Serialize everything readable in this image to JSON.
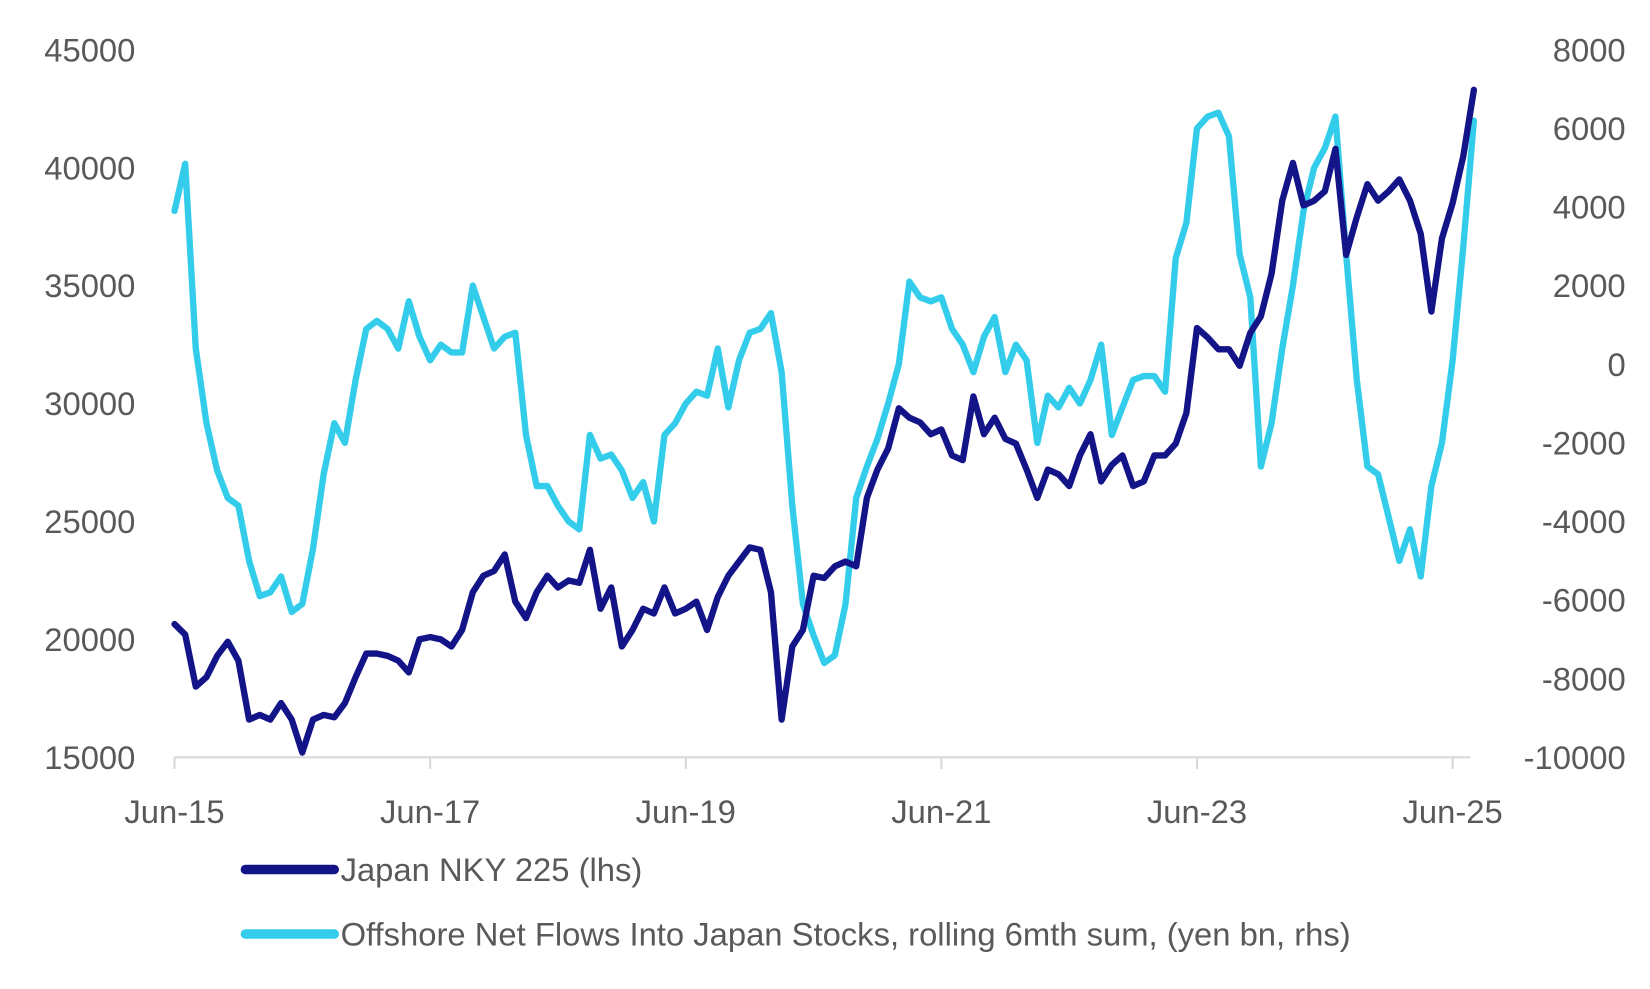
{
  "chart_data": {
    "type": "line",
    "title": "",
    "xlabel": "",
    "ylabel_left": "",
    "ylabel_right": "",
    "x_tick_labels": [
      "Jun-15",
      "Jun-17",
      "Jun-19",
      "Jun-21",
      "Jun-23",
      "Jun-25"
    ],
    "y_left_ticks": [
      "45000",
      "40000",
      "35000",
      "30000",
      "25000",
      "20000",
      "15000"
    ],
    "y_right_ticks": [
      "8000",
      "6000",
      "4000",
      "2000",
      "0",
      "-2000",
      "-4000",
      "-6000",
      "-8000",
      "-10000"
    ],
    "ylim_left": [
      15000,
      45000
    ],
    "ylim_right": [
      -10000,
      8000
    ],
    "grid": false,
    "legend_position": "bottom",
    "x": [
      "2015-06",
      "2015-07",
      "2015-08",
      "2015-09",
      "2015-10",
      "2015-11",
      "2015-12",
      "2016-01",
      "2016-02",
      "2016-03",
      "2016-04",
      "2016-05",
      "2016-06",
      "2016-07",
      "2016-08",
      "2016-09",
      "2016-10",
      "2016-11",
      "2016-12",
      "2017-01",
      "2017-02",
      "2017-03",
      "2017-04",
      "2017-05",
      "2017-06",
      "2017-07",
      "2017-08",
      "2017-09",
      "2017-10",
      "2017-11",
      "2017-12",
      "2018-01",
      "2018-02",
      "2018-03",
      "2018-04",
      "2018-05",
      "2018-06",
      "2018-07",
      "2018-08",
      "2018-09",
      "2018-10",
      "2018-11",
      "2018-12",
      "2019-01",
      "2019-02",
      "2019-03",
      "2019-04",
      "2019-05",
      "2019-06",
      "2019-07",
      "2019-08",
      "2019-09",
      "2019-10",
      "2019-11",
      "2019-12",
      "2020-01",
      "2020-02",
      "2020-03",
      "2020-04",
      "2020-05",
      "2020-06",
      "2020-07",
      "2020-08",
      "2020-09",
      "2020-10",
      "2020-11",
      "2020-12",
      "2021-01",
      "2021-02",
      "2021-03",
      "2021-04",
      "2021-05",
      "2021-06",
      "2021-07",
      "2021-08",
      "2021-09",
      "2021-10",
      "2021-11",
      "2021-12",
      "2022-01",
      "2022-02",
      "2022-03",
      "2022-04",
      "2022-05",
      "2022-06",
      "2022-07",
      "2022-08",
      "2022-09",
      "2022-10",
      "2022-11",
      "2022-12",
      "2023-01",
      "2023-02",
      "2023-03",
      "2023-04",
      "2023-05",
      "2023-06",
      "2023-07",
      "2023-08",
      "2023-09",
      "2023-10",
      "2023-11",
      "2023-12",
      "2024-01",
      "2024-02",
      "2024-03",
      "2024-04",
      "2024-05",
      "2024-06",
      "2024-07",
      "2024-08",
      "2024-09",
      "2024-10",
      "2024-11",
      "2024-12",
      "2025-01",
      "2025-02",
      "2025-03",
      "2025-04",
      "2025-05",
      "2025-06",
      "2025-07",
      "2025-08"
    ],
    "series": [
      {
        "name": "Japan NKY 225 (lhs)",
        "axis": "left",
        "color": "#141489",
        "values": [
          20650,
          20200,
          18000,
          18400,
          19300,
          19900,
          19100,
          16600,
          16800,
          16600,
          17300,
          16600,
          15200,
          16600,
          16800,
          16700,
          17300,
          18400,
          19400,
          19400,
          19300,
          19100,
          18600,
          20000,
          20100,
          20000,
          19700,
          20400,
          22000,
          22700,
          22900,
          23600,
          21600,
          20900,
          22000,
          22700,
          22200,
          22500,
          22400,
          23800,
          21300,
          22200,
          19700,
          20400,
          21300,
          21100,
          22200,
          21100,
          21300,
          21600,
          20400,
          21800,
          22700,
          23300,
          23900,
          23800,
          22000,
          16600,
          19700,
          20400,
          22700,
          22600,
          23100,
          23300,
          23100,
          26000,
          27200,
          28100,
          29800,
          29400,
          29200,
          28700,
          28900,
          27800,
          27600,
          30300,
          28700,
          29400,
          28500,
          28300,
          27200,
          26000,
          27200,
          27000,
          26500,
          27800,
          28700,
          26700,
          27400,
          27800,
          26500,
          26700,
          27800,
          27800,
          28300,
          29600,
          33200,
          32800,
          32300,
          32300,
          31600,
          33000,
          33700,
          35500,
          38600,
          40200,
          38400,
          38600,
          39000,
          40800,
          36300,
          37900,
          39300,
          38600,
          39000,
          39500,
          38600,
          37200,
          33900,
          37000,
          38500,
          40500,
          43300
        ]
      },
      {
        "name": "Offshore Net Flows Into Japan Stocks, rolling 6mth sum, (yen bn, rhs)",
        "axis": "right",
        "color": "#33cdeb",
        "values": [
          3900,
          5100,
          400,
          -1500,
          -2700,
          -3400,
          -3600,
          -5000,
          -5900,
          -5800,
          -5400,
          -6300,
          -6100,
          -4700,
          -2800,
          -1500,
          -2000,
          -400,
          900,
          1100,
          900,
          400,
          1600,
          700,
          100,
          500,
          300,
          300,
          2000,
          1200,
          400,
          700,
          800,
          -1800,
          -3100,
          -3100,
          -3600,
          -4000,
          -4200,
          -1800,
          -2400,
          -2300,
          -2700,
          -3400,
          -3000,
          -4000,
          -1800,
          -1500,
          -1000,
          -700,
          -800,
          400,
          -1100,
          100,
          800,
          900,
          1300,
          -200,
          -3600,
          -6100,
          -6900,
          -7600,
          -7400,
          -6100,
          -3400,
          -2600,
          -1900,
          -1000,
          0,
          2100,
          1700,
          1600,
          1700,
          900,
          500,
          -200,
          700,
          1200,
          -200,
          500,
          100,
          -2000,
          -800,
          -1100,
          -600,
          -1000,
          -400,
          500,
          -1800,
          -1100,
          -400,
          -300,
          -300,
          -700,
          2700,
          3600,
          6000,
          6300,
          6400,
          5800,
          2800,
          1700,
          -2600,
          -1500,
          400,
          2000,
          3900,
          5000,
          5500,
          6300,
          2800,
          -400,
          -2600,
          -2800,
          -3900,
          -5000,
          -4200,
          -5400,
          -3100,
          -2000,
          100,
          3000,
          6200
        ]
      }
    ]
  }
}
